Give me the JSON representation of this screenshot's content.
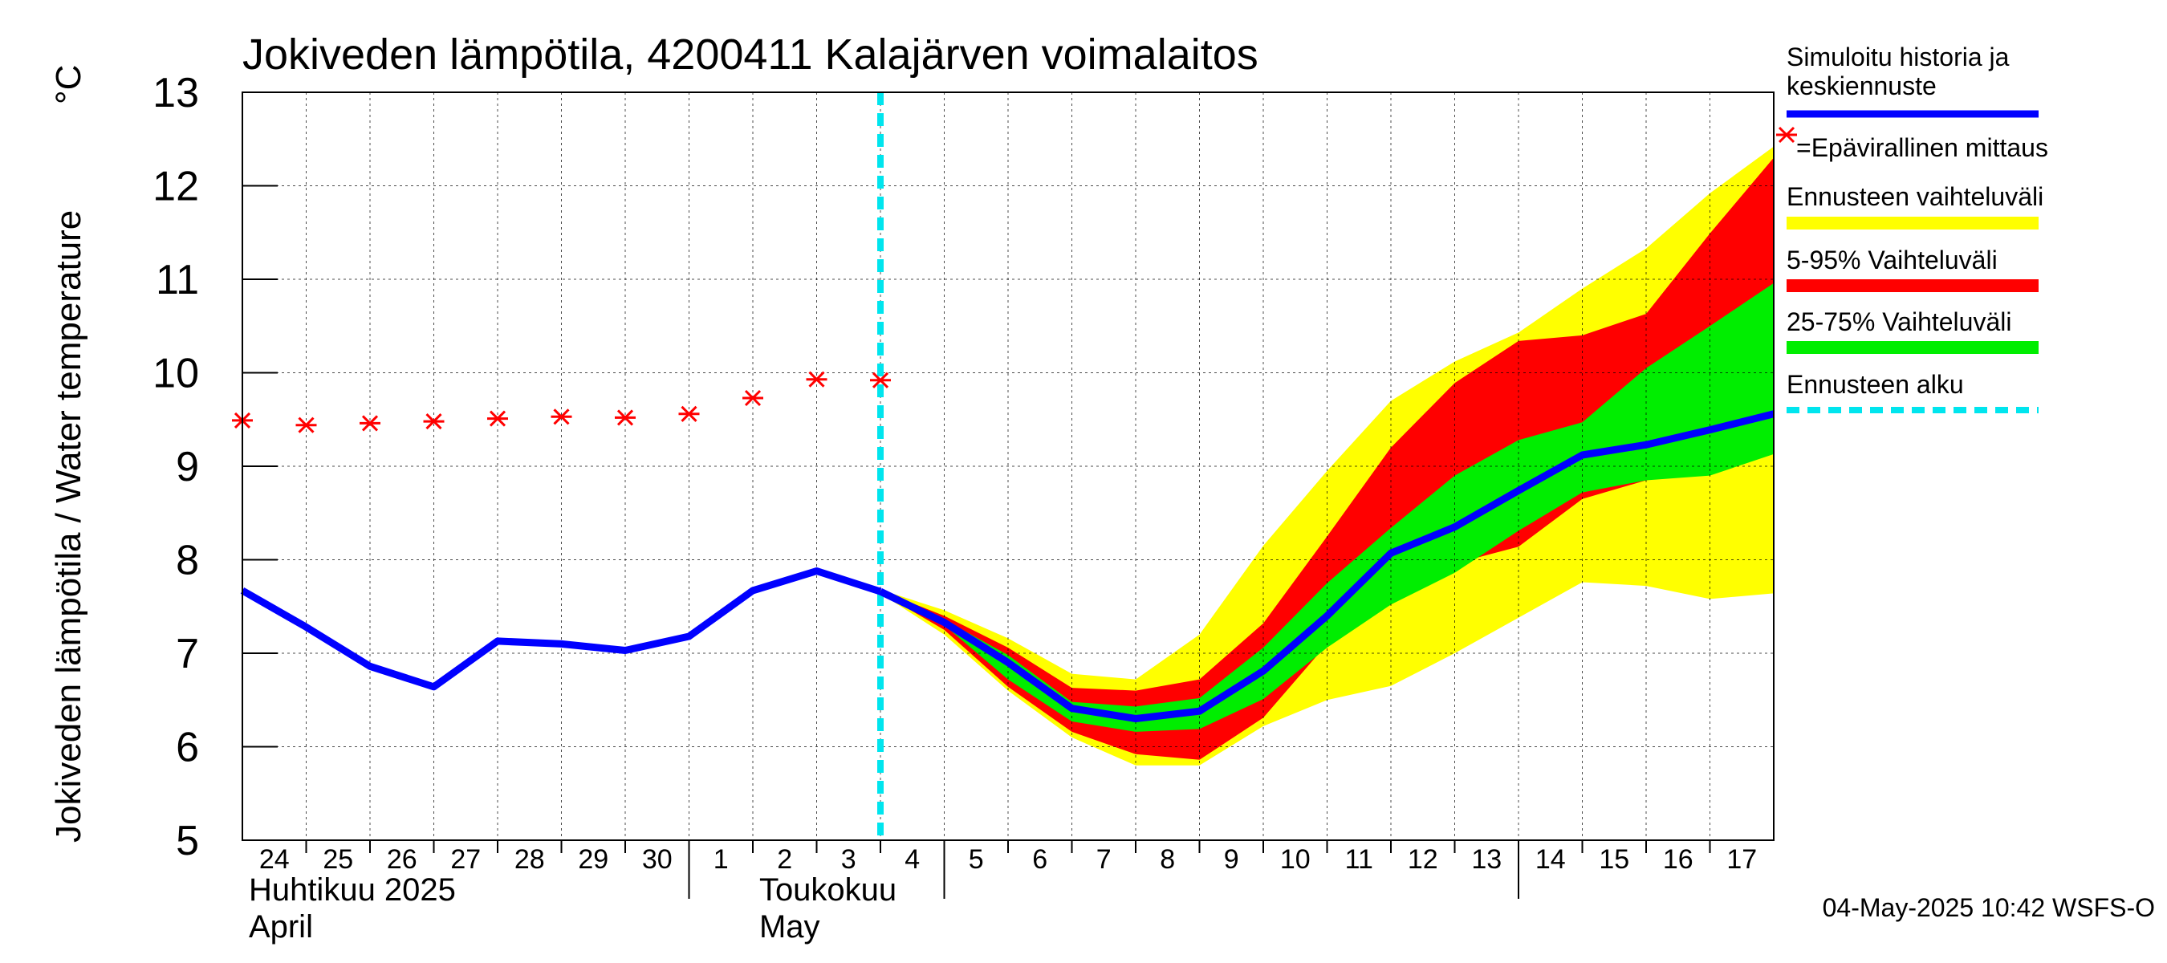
{
  "chart_data": {
    "type": "line",
    "title": "Jokiveden lämpötila, 4200411 Kalajärven voimalaitos",
    "ylabel": "Jokiveden lämpötila / Water temperature",
    "yunit": "°C",
    "ylim": [
      5,
      13
    ],
    "yticks": [
      5,
      6,
      7,
      8,
      9,
      10,
      11,
      12,
      13
    ],
    "xlim": [
      0,
      24
    ],
    "x_day_labels": [
      "24",
      "25",
      "26",
      "27",
      "28",
      "29",
      "30",
      "1",
      "2",
      "3",
      "4",
      "5",
      "6",
      "7",
      "8",
      "9",
      "10",
      "11",
      "12",
      "13",
      "14",
      "15",
      "16",
      "17"
    ],
    "month_labels": [
      {
        "fi": "Huhtikuu  2025",
        "en": "April",
        "x": 0.1
      },
      {
        "fi": "Toukokuu",
        "en": "May",
        "x": 8.1
      }
    ],
    "month_separators": [
      7,
      11,
      20
    ],
    "grid": true,
    "forecast_start_x": 10,
    "x_history": [
      0,
      1,
      2,
      3,
      4,
      5,
      6,
      7,
      8,
      9,
      10
    ],
    "simulated_history": [
      7.67,
      7.28,
      6.86,
      6.64,
      7.13,
      7.1,
      7.03,
      7.18,
      7.67,
      7.88,
      7.66
    ],
    "measurements": [
      {
        "x": 0,
        "y": 9.49
      },
      {
        "x": 1,
        "y": 9.44
      },
      {
        "x": 2,
        "y": 9.46
      },
      {
        "x": 3,
        "y": 9.48
      },
      {
        "x": 4,
        "y": 9.51
      },
      {
        "x": 5,
        "y": 9.53
      },
      {
        "x": 6,
        "y": 9.52
      },
      {
        "x": 7,
        "y": 9.56
      },
      {
        "x": 8,
        "y": 9.73
      },
      {
        "x": 9,
        "y": 9.93
      },
      {
        "x": 10,
        "y": 9.92
      }
    ],
    "x_forecast": [
      10,
      11,
      12,
      13,
      14,
      15,
      16,
      17,
      18,
      19,
      20,
      21,
      22,
      23,
      24
    ],
    "forecast_median": [
      7.66,
      7.33,
      6.9,
      6.41,
      6.3,
      6.38,
      6.81,
      7.4,
      8.07,
      8.35,
      8.74,
      9.12,
      9.23,
      9.39,
      9.56
    ],
    "range_full": {
      "low": [
        7.64,
        7.2,
        6.6,
        6.1,
        5.8,
        5.8,
        6.22,
        6.5,
        6.65,
        7.0,
        7.38,
        7.76,
        7.72,
        7.58,
        7.64
      ],
      "high": [
        7.68,
        7.46,
        7.16,
        6.78,
        6.72,
        7.2,
        8.15,
        8.95,
        9.7,
        10.12,
        10.43,
        10.9,
        11.33,
        11.92,
        12.42
      ]
    },
    "range_5_95": {
      "low": [
        7.65,
        7.25,
        6.64,
        6.16,
        5.92,
        5.86,
        6.31,
        7.1,
        7.52,
        7.96,
        8.14,
        8.65,
        8.85,
        9.0,
        9.18
      ],
      "high": [
        7.67,
        7.4,
        7.06,
        6.63,
        6.6,
        6.72,
        7.32,
        8.25,
        9.2,
        9.89,
        10.34,
        10.4,
        10.63,
        11.49,
        12.3
      ]
    },
    "range_25_75": {
      "low": [
        7.65,
        7.3,
        6.72,
        6.27,
        6.16,
        6.19,
        6.51,
        7.06,
        7.52,
        7.86,
        8.31,
        8.72,
        8.85,
        8.9,
        9.13
      ],
      "high": [
        7.67,
        7.36,
        6.98,
        6.48,
        6.43,
        6.52,
        7.06,
        7.75,
        8.34,
        8.9,
        9.28,
        9.47,
        10.05,
        10.5,
        10.96
      ]
    },
    "colors": {
      "median": "#0000ff",
      "range_full": "#ffff00",
      "range_5_95": "#ff0000",
      "range_25_75": "#00ee00",
      "forecast_start": "#00e5ee",
      "measurement": "#ff0000",
      "grid": "#000000"
    }
  },
  "legend": [
    {
      "label": "Simuloitu historia ja keskiennuste",
      "lines": [
        "Simuloitu historia ja",
        "keskiennuste"
      ],
      "color": "#0000ff",
      "style": "line"
    },
    {
      "label": "=Epävirallinen mittaus",
      "lines": [
        "=Epävirallinen mittaus"
      ],
      "color": "#ff0000",
      "style": "star"
    },
    {
      "label": "Ennusteen vaihteluväli",
      "lines": [
        "Ennusteen vaihteluväli"
      ],
      "color": "#ffff00",
      "style": "bar"
    },
    {
      "label": "5-95% Vaihteluväli",
      "lines": [
        "5-95% Vaihteluväli"
      ],
      "color": "#ff0000",
      "style": "bar"
    },
    {
      "label": "25-75% Vaihteluväli",
      "lines": [
        "25-75% Vaihteluväli"
      ],
      "color": "#00ee00",
      "style": "bar"
    },
    {
      "label": "Ennusteen alku",
      "lines": [
        "Ennusteen alku"
      ],
      "color": "#00e5ee",
      "style": "dash"
    }
  ],
  "timestamp": "04-May-2025 10:42 WSFS-O"
}
